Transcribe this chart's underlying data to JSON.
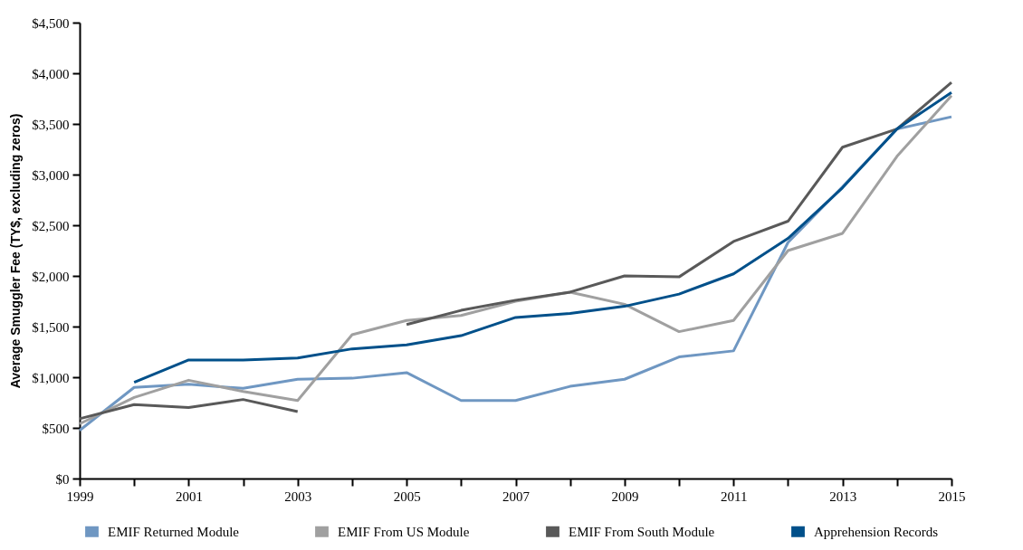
{
  "chart_data": {
    "type": "line",
    "ylabel": "Average Smuggler Fee (TY$, excluding zeros)",
    "x": [
      1999,
      2000,
      2001,
      2002,
      2003,
      2004,
      2005,
      2006,
      2007,
      2008,
      2009,
      2010,
      2011,
      2012,
      2013,
      2014,
      2015
    ],
    "series": [
      {
        "name": "EMIF Returned Module",
        "color": "#6f97c2",
        "values": [
          475,
          900,
          930,
          890,
          980,
          990,
          1045,
          770,
          770,
          910,
          980,
          1200,
          1260,
          2330,
          2880,
          3450,
          3570
        ]
      },
      {
        "name": "EMIF From US Module",
        "color": "#a0a0a0",
        "values": [
          540,
          800,
          970,
          860,
          770,
          1420,
          1560,
          1610,
          1750,
          1840,
          1720,
          1450,
          1560,
          2250,
          2420,
          3180,
          3780
        ]
      },
      {
        "name": "EMIF From South Module",
        "color": "#595959",
        "values": [
          590,
          730,
          700,
          780,
          660,
          null,
          1520,
          1660,
          1760,
          1840,
          2000,
          1990,
          2340,
          2540,
          3270,
          3450,
          3910
        ]
      },
      {
        "name": "Apprehension Records",
        "color": "#00508a",
        "values": [
          null,
          950,
          1170,
          1170,
          1190,
          1280,
          1320,
          1410,
          1590,
          1630,
          1700,
          1820,
          2020,
          2370,
          2870,
          3450,
          3810
        ]
      }
    ],
    "xlim": [
      1999,
      2015
    ],
    "xticks": [
      1999,
      {
        "value": 2000,
        "label": null
      },
      2001,
      {
        "value": 2002,
        "label": null
      },
      2003,
      {
        "value": 2004,
        "label": null
      },
      2005,
      {
        "value": 2006,
        "label": null
      },
      2007,
      {
        "value": 2008,
        "label": null
      },
      2009,
      {
        "value": 2010,
        "label": null
      },
      2011,
      {
        "value": 2012,
        "label": null
      },
      2013,
      {
        "value": 2014,
        "label": null
      },
      2015
    ],
    "ylim": [
      0,
      4500
    ],
    "yticks": [
      {
        "value": 0,
        "label": "$0"
      },
      {
        "value": 500,
        "label": "$500"
      },
      {
        "value": 1000,
        "label": "$1,000"
      },
      {
        "value": 1500,
        "label": "$1,500"
      },
      {
        "value": 2000,
        "label": "$2,000"
      },
      {
        "value": 2500,
        "label": "$2,500"
      },
      {
        "value": 3000,
        "label": "$3,000"
      },
      {
        "value": 3500,
        "label": "$3,500"
      },
      {
        "value": 4000,
        "label": "$4,000"
      },
      {
        "value": 4500,
        "label": "$4,500"
      }
    ],
    "grid": false,
    "legend": "bottom",
    "marker": "none",
    "line_style": "solid"
  }
}
